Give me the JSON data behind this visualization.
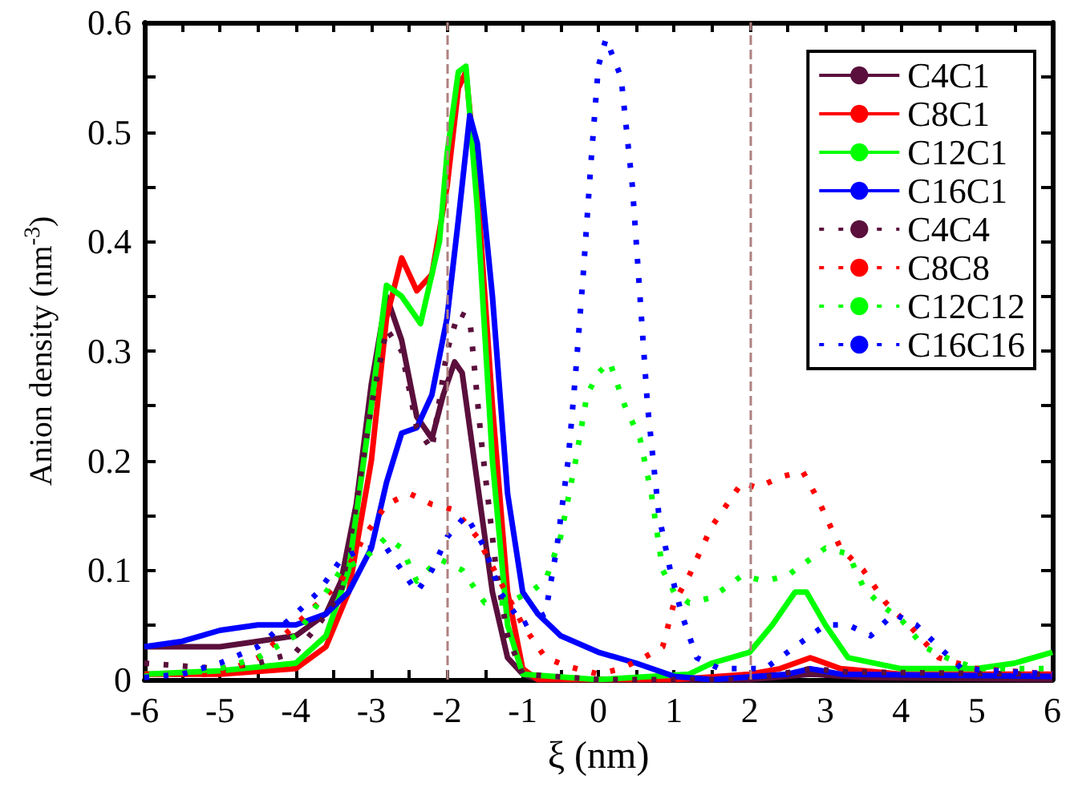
{
  "chart_data": {
    "type": "line",
    "xlabel": "ξ (nm)",
    "ylabel": "Anion density (nm$^{-3}$)",
    "xlim": [
      -6,
      6
    ],
    "xticks": [
      -6,
      -5,
      -4,
      -3,
      -2,
      -1,
      0,
      1,
      2,
      3,
      4,
      5,
      6
    ],
    "ylim": [
      0,
      0.6
    ],
    "yticks": [
      0,
      0.1,
      0.2,
      0.3,
      0.4,
      0.5,
      0.6
    ],
    "grid": false,
    "legend": "top right",
    "marker": "none",
    "ref_lines": [
      {
        "axis": "x",
        "value": -2,
        "color": "#b08080",
        "line_style": "dashed"
      },
      {
        "axis": "x",
        "value": 2,
        "color": "#b08080",
        "line_style": "dashed"
      }
    ],
    "series": [
      {
        "name": "C4C1",
        "color": "#5a0f3c",
        "line_style": "solid",
        "x": [
          -6,
          -5,
          -4.5,
          -4,
          -3.6,
          -3.4,
          -3.2,
          -3.0,
          -2.8,
          -2.6,
          -2.4,
          -2.2,
          -2.05,
          -1.9,
          -1.8,
          -1.6,
          -1.4,
          -1.2,
          -1.0,
          -0.8,
          0,
          1,
          2,
          2.8,
          3.5,
          6
        ],
        "values": [
          0.03,
          0.03,
          0.035,
          0.04,
          0.06,
          0.09,
          0.16,
          0.27,
          0.35,
          0.31,
          0.24,
          0.22,
          0.26,
          0.29,
          0.28,
          0.18,
          0.08,
          0.02,
          0.005,
          0,
          0,
          0,
          0,
          0.005,
          0.002,
          0
        ]
      },
      {
        "name": "C8C1",
        "color": "#ff0000",
        "line_style": "solid",
        "x": [
          -6,
          -5,
          -4,
          -3.6,
          -3.3,
          -3.0,
          -2.8,
          -2.6,
          -2.4,
          -2.2,
          -2.0,
          -1.85,
          -1.75,
          -1.6,
          -1.4,
          -1.2,
          -1.0,
          -0.8,
          0,
          1,
          2,
          2.4,
          2.8,
          3.2,
          4,
          5,
          6
        ],
        "values": [
          0.005,
          0.005,
          0.01,
          0.03,
          0.08,
          0.2,
          0.33,
          0.385,
          0.355,
          0.37,
          0.45,
          0.54,
          0.555,
          0.45,
          0.25,
          0.08,
          0.01,
          0,
          0,
          0,
          0.005,
          0.01,
          0.02,
          0.01,
          0.005,
          0.005,
          0.005
        ]
      },
      {
        "name": "C12C1",
        "color": "#00ff00",
        "line_style": "solid",
        "x": [
          -6,
          -5,
          -4,
          -3.6,
          -3.3,
          -3.0,
          -2.8,
          -2.6,
          -2.35,
          -2.1,
          -2.0,
          -1.85,
          -1.75,
          -1.6,
          -1.4,
          -1.2,
          -1.0,
          0,
          1.2,
          1.5,
          2.0,
          2.3,
          2.6,
          2.75,
          3.0,
          3.3,
          4,
          5,
          5.5,
          6
        ],
        "values": [
          0.005,
          0.008,
          0.015,
          0.04,
          0.1,
          0.25,
          0.36,
          0.35,
          0.325,
          0.4,
          0.48,
          0.555,
          0.56,
          0.43,
          0.2,
          0.05,
          0.005,
          0,
          0.005,
          0.015,
          0.025,
          0.05,
          0.08,
          0.08,
          0.05,
          0.02,
          0.01,
          0.01,
          0.015,
          0.025
        ]
      },
      {
        "name": "C16C1",
        "color": "#0000ff",
        "line_style": "solid",
        "x": [
          -6,
          -5.5,
          -5,
          -4.5,
          -4,
          -3.6,
          -3.3,
          -3,
          -2.8,
          -2.6,
          -2.4,
          -2.2,
          -2.0,
          -1.85,
          -1.7,
          -1.6,
          -1.4,
          -1.2,
          -1.0,
          -0.8,
          -0.5,
          0,
          0.5,
          1.0,
          1.5,
          2.5,
          2.8,
          3.2,
          6
        ],
        "values": [
          0.03,
          0.035,
          0.045,
          0.05,
          0.05,
          0.06,
          0.08,
          0.12,
          0.18,
          0.225,
          0.23,
          0.26,
          0.33,
          0.42,
          0.515,
          0.49,
          0.35,
          0.17,
          0.08,
          0.06,
          0.04,
          0.025,
          0.015,
          0.003,
          0,
          0.005,
          0.01,
          0.005,
          0.003
        ]
      },
      {
        "name": "C4C4",
        "color": "#5a0f3c",
        "line_style": "dotted",
        "x": [
          -6,
          -5,
          -4.5,
          -4,
          -3.7,
          -3.4,
          -3.2,
          -3,
          -2.8,
          -2.6,
          -2.4,
          -2.2,
          -2.0,
          -1.85,
          -1.7,
          -1.55,
          -1.35,
          -1.2,
          -1.0,
          0,
          2,
          2.8,
          3.3,
          6
        ],
        "values": [
          0.015,
          0.01,
          0.015,
          0.025,
          0.05,
          0.08,
          0.16,
          0.25,
          0.32,
          0.3,
          0.23,
          0.21,
          0.3,
          0.335,
          0.33,
          0.22,
          0.1,
          0.04,
          0.005,
          0,
          0,
          0.01,
          0.007,
          0.005
        ]
      },
      {
        "name": "C8C8",
        "color": "#ff0000",
        "line_style": "dotted",
        "x": [
          -6,
          -5,
          -4.5,
          -4,
          -3.7,
          -3.4,
          -3.1,
          -2.8,
          -2.5,
          -2.2,
          -1.9,
          -1.6,
          -1.3,
          -1.0,
          -0.7,
          -0.4,
          0,
          0.3,
          0.6,
          0.85,
          1.0,
          1.2,
          1.5,
          1.7,
          1.9,
          2.1,
          2.4,
          2.7,
          2.9,
          3.2,
          3.5,
          3.8,
          4.1,
          4.5,
          5,
          6
        ],
        "values": [
          0.005,
          0.005,
          0.02,
          0.05,
          0.07,
          0.09,
          0.13,
          0.16,
          0.17,
          0.16,
          0.155,
          0.13,
          0.09,
          0.05,
          0.02,
          0.012,
          0.005,
          0.01,
          0.02,
          0.03,
          0.07,
          0.095,
          0.14,
          0.16,
          0.18,
          0.175,
          0.185,
          0.19,
          0.165,
          0.12,
          0.1,
          0.07,
          0.05,
          0.02,
          0.01,
          0.005
        ]
      },
      {
        "name": "C12C12",
        "color": "#00ff00",
        "line_style": "dotted",
        "x": [
          -6,
          -5,
          -4.5,
          -4,
          -3.7,
          -3.4,
          -3.1,
          -2.8,
          -2.6,
          -2.4,
          -2.1,
          -1.8,
          -1.5,
          -1.2,
          -0.9,
          -0.7,
          -0.5,
          -0.3,
          -0.15,
          0,
          0.15,
          0.35,
          0.55,
          0.7,
          0.85,
          1.0,
          1.2,
          1.5,
          1.9,
          2.2,
          2.5,
          2.7,
          3.0,
          3.3,
          3.5,
          3.7,
          4.0,
          4.3,
          4.6,
          5,
          6
        ],
        "values": [
          0.003,
          0.01,
          0.02,
          0.04,
          0.07,
          0.1,
          0.11,
          0.13,
          0.12,
          0.09,
          0.11,
          0.1,
          0.07,
          0.07,
          0.08,
          0.09,
          0.13,
          0.2,
          0.26,
          0.28,
          0.29,
          0.25,
          0.22,
          0.17,
          0.1,
          0.08,
          0.07,
          0.075,
          0.095,
          0.09,
          0.095,
          0.105,
          0.12,
          0.115,
          0.085,
          0.07,
          0.055,
          0.03,
          0.02,
          0.01,
          0.01
        ]
      },
      {
        "name": "C16C16",
        "color": "#0000ff",
        "line_style": "dotted",
        "x": [
          -6,
          -5.5,
          -5,
          -4.5,
          -4,
          -3.7,
          -3.4,
          -3.1,
          -2.8,
          -2.6,
          -2.4,
          -2.2,
          -2.0,
          -1.75,
          -1.5,
          -1.3,
          -1.0,
          -0.7,
          -0.55,
          -0.4,
          -0.3,
          -0.2,
          -0.1,
          0.0,
          0.1,
          0.3,
          0.45,
          0.55,
          0.65,
          0.8,
          0.95,
          1.1,
          1.3,
          1.6,
          2.2,
          2.6,
          3,
          3.3,
          3.6,
          3.9,
          4.2,
          4.5,
          4.8,
          6
        ],
        "values": [
          0.002,
          0.005,
          0.015,
          0.03,
          0.06,
          0.08,
          0.11,
          0.12,
          0.12,
          0.1,
          0.08,
          0.1,
          0.13,
          0.15,
          0.12,
          0.08,
          0.05,
          0.06,
          0.12,
          0.2,
          0.28,
          0.37,
          0.47,
          0.56,
          0.585,
          0.55,
          0.45,
          0.35,
          0.25,
          0.15,
          0.1,
          0.06,
          0.02,
          0.01,
          0.01,
          0.03,
          0.05,
          0.05,
          0.04,
          0.06,
          0.05,
          0.03,
          0.01,
          0.005
        ]
      }
    ]
  }
}
